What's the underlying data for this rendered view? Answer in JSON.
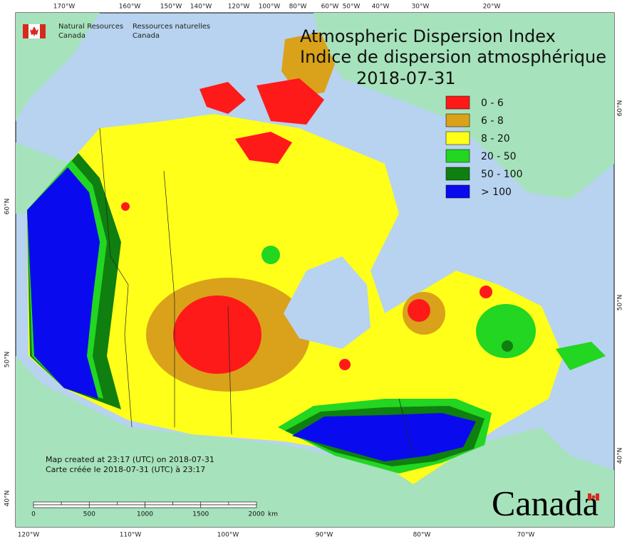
{
  "header": {
    "agency_en": [
      "Natural Resources",
      "Canada"
    ],
    "agency_fr": [
      "Ressources naturelles",
      "Canada"
    ]
  },
  "title": {
    "lines": [
      "Atmospheric Dispersion Index",
      "Indice de dispersion atmosphérique"
    ],
    "date": "2018-07-31"
  },
  "legend": {
    "items": [
      {
        "label": "0 - 6",
        "color": "#ff1a1a"
      },
      {
        "label": "6 - 8",
        "color": "#d9a21a"
      },
      {
        "label": "8 - 20",
        "color": "#ffff1a"
      },
      {
        "label": "20 - 50",
        "color": "#22d622"
      },
      {
        "label": "50 - 100",
        "color": "#0f7f0f"
      },
      {
        "label": "> 100",
        "color": "#0a0aee"
      }
    ]
  },
  "graticule": {
    "top": [
      "170°W",
      "160°W",
      "150°W",
      "140°W",
      "120°W",
      "100°W",
      "80°W",
      "60°W",
      "50°W",
      "40°W",
      "30°W",
      "20°W"
    ],
    "bottom": [
      "120°W",
      "110°W",
      "100°W",
      "90°W",
      "80°W",
      "70°W"
    ],
    "left": [
      "60°N",
      "50°N",
      "40°N"
    ],
    "right": [
      "60°N",
      "50°N",
      "40°N"
    ]
  },
  "footer": {
    "lines": [
      "Map created at 23:17 (UTC) on 2018-07-31",
      "Carte créée le 2018-07-31 (UTC) à 23:17"
    ]
  },
  "scale_bar": {
    "labels": [
      0,
      500,
      1000,
      1500,
      2000
    ],
    "unit": "km"
  },
  "wordmark": "Canada"
}
